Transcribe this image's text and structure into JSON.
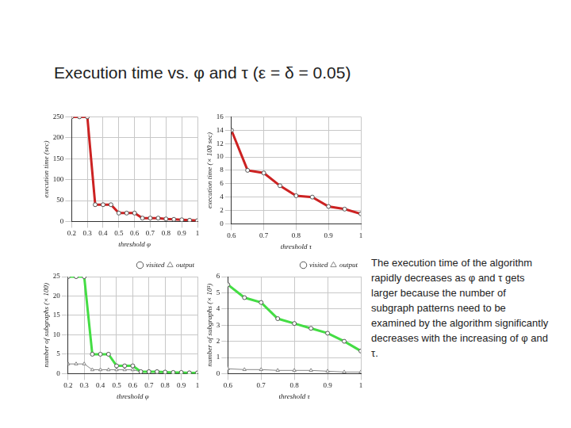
{
  "slide": {
    "title": "Execution time vs. φ and τ (ε = δ = 0.05)",
    "text": "The execution time of the algorithm rapidly decreases as φ and τ gets larger because the number of subgraph patterns need to be examined by the algorithm significantly decreases with the increasing of φ and τ."
  },
  "chart_data": [
    {
      "type": "line",
      "x_label": "threshold φ",
      "y_label": "execution time (sec)",
      "x": [
        0.2,
        0.25,
        0.3,
        0.35,
        0.4,
        0.45,
        0.5,
        0.55,
        0.6,
        0.65,
        0.7,
        0.75,
        0.8,
        0.85,
        0.9,
        0.95,
        1
      ],
      "series": [
        {
          "name": "execution time",
          "color": "#cc2222",
          "marker": "circle",
          "line_style": "solid",
          "values": [
            250,
            250,
            250,
            40,
            40,
            40,
            20,
            20,
            20,
            8,
            8,
            8,
            6,
            5,
            4,
            3,
            2
          ]
        }
      ],
      "xlim": [
        0.2,
        1
      ],
      "xticks": [
        0.2,
        0.3,
        0.4,
        0.5,
        0.6,
        0.7,
        0.8,
        0.9,
        1
      ],
      "ylim": [
        0,
        250
      ],
      "yticks": [
        0,
        50,
        100,
        150,
        200,
        250
      ],
      "grid": true
    },
    {
      "type": "line",
      "x_label": "threshold τ",
      "y_label": "execution time (× 100 sec)",
      "x": [
        0.6,
        0.65,
        0.7,
        0.75,
        0.8,
        0.85,
        0.9,
        0.95,
        1
      ],
      "series": [
        {
          "name": "execution time",
          "color": "#cc2222",
          "marker": "circle",
          "line_style": "solid",
          "values": [
            14,
            8,
            7.6,
            5.7,
            4.2,
            4,
            2.6,
            2.2,
            1.5
          ]
        }
      ],
      "xlim": [
        0.6,
        1
      ],
      "xticks": [
        0.6,
        0.7,
        0.8,
        0.9,
        1
      ],
      "ylim": [
        0,
        16
      ],
      "yticks": [
        0,
        2,
        4,
        6,
        8,
        10,
        12,
        14,
        16
      ],
      "grid": true
    },
    {
      "type": "line",
      "x_label": "threshold φ",
      "y_label": "number of subgraphs (× 100)",
      "x": [
        0.2,
        0.25,
        0.3,
        0.35,
        0.4,
        0.45,
        0.5,
        0.55,
        0.6,
        0.65,
        0.7,
        0.75,
        0.8,
        0.85,
        0.9,
        0.95,
        1
      ],
      "series": [
        {
          "name": "visited",
          "color": "#44dd44",
          "marker": "circle",
          "line_style": "solid",
          "values": [
            25,
            25,
            25,
            5,
            5,
            5,
            2,
            2,
            2,
            0.5,
            0.5,
            0.5,
            0.4,
            0.3,
            0.3,
            0.2,
            0.2
          ]
        },
        {
          "name": "output",
          "color": "#888888",
          "marker": "triangle",
          "line_style": "solid",
          "values": [
            2.5,
            2.5,
            2.5,
            1,
            1,
            1,
            1,
            1,
            1,
            0.5,
            0.5,
            0.3,
            0.3,
            0.2,
            0.2,
            0.2,
            0.2
          ]
        }
      ],
      "xlim": [
        0.2,
        1
      ],
      "xticks": [
        0.2,
        0.3,
        0.4,
        0.5,
        0.6,
        0.7,
        0.8,
        0.9,
        1
      ],
      "ylim": [
        0,
        25
      ],
      "yticks": [
        0,
        5,
        10,
        15,
        20,
        25
      ],
      "grid": true,
      "legend": "top-right"
    },
    {
      "type": "line",
      "x_label": "threshold τ",
      "y_label": "number of subgraphs (× 10³)",
      "x": [
        0.6,
        0.65,
        0.7,
        0.75,
        0.8,
        0.85,
        0.9,
        0.95,
        1
      ],
      "series": [
        {
          "name": "visited",
          "color": "#44dd44",
          "marker": "circle",
          "line_style": "solid",
          "values": [
            5.5,
            4.7,
            4.4,
            3.4,
            3.1,
            2.8,
            2.5,
            2,
            1.4
          ]
        },
        {
          "name": "output",
          "color": "#888888",
          "marker": "triangle",
          "line_style": "solid",
          "values": [
            0.3,
            0.25,
            0.25,
            0.2,
            0.2,
            0.2,
            0.15,
            0.1,
            0.1
          ]
        }
      ],
      "xlim": [
        0.6,
        1
      ],
      "xticks": [
        0.6,
        0.7,
        0.8,
        0.9,
        1
      ],
      "ylim": [
        0,
        6
      ],
      "yticks": [
        0,
        1,
        2,
        3,
        4,
        5,
        6
      ],
      "grid": true,
      "legend": "top-right"
    }
  ]
}
